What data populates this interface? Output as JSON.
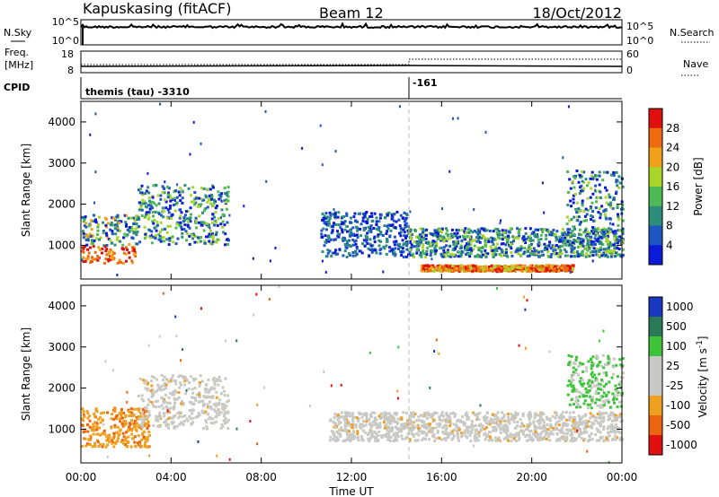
{
  "header": {
    "station": "Kapuskasing (fitACF)",
    "beam": "Beam 12",
    "date": "18/Oct/2012"
  },
  "top_panels": {
    "nsky_label": "N.Sky",
    "nsky_ticks": [
      "10^5",
      "10^0"
    ],
    "nsearch_label": "N.Search",
    "nsearch_ticks": [
      "10^5",
      "10^0"
    ],
    "freq_label_1": "Freq.",
    "freq_label_2": "[MHz]",
    "freq_ticks": [
      "18",
      "8"
    ],
    "nave_label": "Nave",
    "nave_ticks": [
      "60",
      "0"
    ],
    "cpid_label": "CPID",
    "cpid_1": "themis (tau) -3310",
    "cpid_2": "-161"
  },
  "chart_data": [
    {
      "type": "heatmap",
      "parameter": "power",
      "ylabel": "Slant Range [km]",
      "yticks": [
        "1000",
        "2000",
        "3000",
        "4000"
      ],
      "ylim": [
        180,
        4500
      ],
      "xlim_hours": [
        0,
        24
      ],
      "colorbar": {
        "label": "Power [dB]",
        "ticks": [
          "4",
          "8",
          "12",
          "16",
          "20",
          "24",
          "28"
        ],
        "colors": [
          "#0b1ad6",
          "#1e56c4",
          "#2e8c7a",
          "#4fba55",
          "#a8d52c",
          "#f0a01a",
          "#ee6a10",
          "#e01010"
        ]
      },
      "echo_regions": [
        {
          "t": [
            0.0,
            2.5
          ],
          "range": [
            550,
            1750
          ],
          "level": "medium-high"
        },
        {
          "t": [
            2.5,
            6.5
          ],
          "range": [
            1000,
            2450
          ],
          "level": "medium"
        },
        {
          "t": [
            10.6,
            14.5
          ],
          "range": [
            700,
            1800
          ],
          "level": "low-medium"
        },
        {
          "t": [
            14.5,
            24.0
          ],
          "range": [
            700,
            1400
          ],
          "level": "medium"
        },
        {
          "t": [
            15.0,
            21.8
          ],
          "range": [
            350,
            500
          ],
          "level": "high"
        },
        {
          "t": [
            21.5,
            24.0
          ],
          "range": [
            1000,
            2800
          ],
          "level": "medium"
        }
      ]
    },
    {
      "type": "heatmap",
      "parameter": "velocity",
      "ylabel": "Slant Range [km]",
      "yticks": [
        "1000",
        "2000",
        "3000",
        "4000"
      ],
      "ylim": [
        180,
        4500
      ],
      "xlim_hours": [
        0,
        24
      ],
      "colorbar": {
        "label": "Velocity [m s^-1]",
        "ticks": [
          "1000",
          "500",
          "100",
          "25",
          "-25",
          "-100",
          "-500",
          "-1000"
        ],
        "colors": [
          "#1838c0",
          "#2a7a5a",
          "#3ec43a",
          "#c8c8c4",
          "#c8c8c4",
          "#f0a020",
          "#ec6410",
          "#e01010"
        ]
      },
      "echo_regions": [
        {
          "t": [
            0.0,
            3.0
          ],
          "range": [
            550,
            1500
          ],
          "level": "orange"
        },
        {
          "t": [
            2.5,
            6.5
          ],
          "range": [
            1000,
            2300
          ],
          "level": "grey"
        },
        {
          "t": [
            11.0,
            24.0
          ],
          "range": [
            700,
            1400
          ],
          "level": "grey"
        },
        {
          "t": [
            21.5,
            24.0
          ],
          "range": [
            1500,
            2800
          ],
          "level": "green"
        }
      ]
    }
  ],
  "x_axis": {
    "ticks": [
      "00:00",
      "04:00",
      "08:00",
      "12:00",
      "16:00",
      "20:00",
      "00:00"
    ],
    "label": "Time UT"
  }
}
